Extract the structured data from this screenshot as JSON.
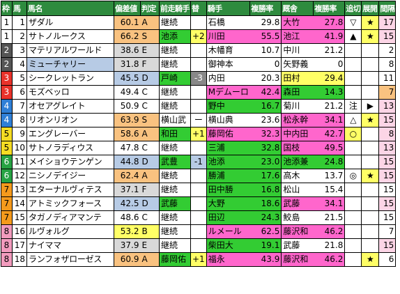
{
  "columns": [
    "枠",
    "馬",
    "馬名",
    "偏差値",
    "判定",
    "前走騎手",
    "替",
    "騎手",
    "複勝率",
    "厩舎",
    "複勝率",
    "追切",
    "展開",
    "間隔"
  ],
  "colors": {
    "header_bg": "#2e8b3e",
    "waku": [
      "#ffffff",
      "#ffffff",
      "#444444",
      "#444444",
      "#e8322a",
      "#e8322a",
      "#2f7fd6",
      "#2f7fd6",
      "#f5dc23",
      "#f5dc23",
      "#27a243",
      "#27a243",
      "#f59a1c",
      "#f59a1c",
      "#f29bbd",
      "#f29bbd",
      "#f29bbd",
      "#f29bbd"
    ],
    "orange": "#f9c280",
    "blue": "#b7cbe5",
    "green_light": "#c6e8b0",
    "green": "#33cc33",
    "pink": "#ff66cc",
    "yellow": "#ffff66",
    "gray": "#d9d9d9",
    "ltpink": "#fcd5e6"
  },
  "rows": [
    {
      "waku": "1",
      "num": "1",
      "name": "ザダル",
      "dev": "60.1",
      "grade": "A",
      "prev": "継続",
      "swap": "",
      "jockey": "石橋",
      "jrate": "29.8",
      "stable": "大竹",
      "srate": "27.8",
      "oikiri": "▽",
      "tenkai": "★",
      "kankaku": "17"
    },
    {
      "waku": "1",
      "num": "2",
      "name": "サトノルークス",
      "dev": "66.2",
      "grade": "S",
      "prev": "池添",
      "swap": "+2",
      "jockey": "川田",
      "jrate": "55.5",
      "stable": "池江",
      "srate": "41.9",
      "oikiri": "▲",
      "tenkai": "★",
      "kankaku": "15"
    },
    {
      "waku": "2",
      "num": "3",
      "name": "マテリアルワールド",
      "dev": "38.6",
      "grade": "E",
      "prev": "継続",
      "swap": "",
      "jockey": "木幡育",
      "jrate": "10.7",
      "stable": "中川",
      "srate": "21.2",
      "oikiri": "",
      "tenkai": "",
      "kankaku": "2"
    },
    {
      "waku": "2",
      "num": "4",
      "name": "ミューチャリー",
      "dev": "31.8",
      "grade": "F",
      "prev": "継続",
      "swap": "",
      "jockey": "御神本",
      "jrate": "0",
      "stable": "矢野義",
      "srate": "0",
      "oikiri": "",
      "tenkai": "",
      "kankaku": "8"
    },
    {
      "waku": "3",
      "num": "5",
      "name": "シークレットラン",
      "dev": "45.5",
      "grade": "D",
      "prev": "戸崎",
      "swap": "-3",
      "jockey": "内田",
      "jrate": "20.3",
      "stable": "田村",
      "srate": "29.4",
      "oikiri": "",
      "tenkai": "",
      "kankaku": "11"
    },
    {
      "waku": "3",
      "num": "6",
      "name": "モズベッロ",
      "dev": "49.4",
      "grade": "C",
      "prev": "継続",
      "swap": "",
      "jockey": "Mデムーロ",
      "jrate": "42.4",
      "stable": "森田",
      "srate": "14.3",
      "oikiri": "",
      "tenkai": "",
      "kankaku": "7"
    },
    {
      "waku": "4",
      "num": "7",
      "name": "オセアグレイト",
      "dev": "50.9",
      "grade": "C",
      "prev": "継続",
      "swap": "",
      "jockey": "野中",
      "jrate": "16.7",
      "stable": "菊川",
      "srate": "21.2",
      "oikiri": "注",
      "tenkai": "▶",
      "kankaku": "13"
    },
    {
      "waku": "4",
      "num": "8",
      "name": "リオンリオン",
      "dev": "63.9",
      "grade": "S",
      "prev": "横山武",
      "swap": "ー",
      "jockey": "横山典",
      "jrate": "23.6",
      "stable": "松永幹",
      "srate": "34.1",
      "oikiri": "△",
      "tenkai": "★",
      "kankaku": "15"
    },
    {
      "waku": "5",
      "num": "9",
      "name": "エングレーバー",
      "dev": "58.6",
      "grade": "A",
      "prev": "和田",
      "swap": "+1",
      "jockey": "藤岡佑",
      "jrate": "32.3",
      "stable": "中内田",
      "srate": "42.7",
      "oikiri": "○",
      "tenkai": "",
      "kankaku": "8"
    },
    {
      "waku": "5",
      "num": "10",
      "name": "サトノラディウス",
      "dev": "47.8",
      "grade": "C",
      "prev": "継続",
      "swap": "",
      "jockey": "三浦",
      "jrate": "32.8",
      "stable": "国枝",
      "srate": "49.5",
      "oikiri": "",
      "tenkai": "",
      "kankaku": "13"
    },
    {
      "waku": "6",
      "num": "11",
      "name": "メイショウテンゲン",
      "dev": "44.8",
      "grade": "D",
      "prev": "武豊",
      "swap": "-1",
      "jockey": "池添",
      "jrate": "23.0",
      "stable": "池添兼",
      "srate": "24.8",
      "oikiri": "",
      "tenkai": "",
      "kankaku": "15"
    },
    {
      "waku": "6",
      "num": "12",
      "name": "ニシノデイジー",
      "dev": "62.4",
      "grade": "A",
      "prev": "継続",
      "swap": "",
      "jockey": "勝浦",
      "jrate": "17.6",
      "stable": "高木",
      "srate": "13.7",
      "oikiri": "◎",
      "tenkai": "★",
      "kankaku": "15"
    },
    {
      "waku": "7",
      "num": "13",
      "name": "エターナルヴィテス",
      "dev": "37.1",
      "grade": "F",
      "prev": "継続",
      "swap": "",
      "jockey": "田中勝",
      "jrate": "16.8",
      "stable": "松山",
      "srate": "15.4",
      "oikiri": "",
      "tenkai": "",
      "kankaku": "15"
    },
    {
      "waku": "7",
      "num": "14",
      "name": "アトミックフォース",
      "dev": "42.5",
      "grade": "D",
      "prev": "武藤",
      "swap": "",
      "jockey": "大野",
      "jrate": "18.6",
      "stable": "武藤",
      "srate": "34.1",
      "oikiri": "",
      "tenkai": "",
      "kankaku": "15"
    },
    {
      "waku": "7",
      "num": "15",
      "name": "タガノディアマンテ",
      "dev": "48.6",
      "grade": "C",
      "prev": "継続",
      "swap": "",
      "jockey": "田辺",
      "jrate": "24.3",
      "stable": "鮫島",
      "srate": "21.5",
      "oikiri": "",
      "tenkai": "",
      "kankaku": "15"
    },
    {
      "waku": "8",
      "num": "16",
      "name": "ルヴォルグ",
      "dev": "53.2",
      "grade": "B",
      "prev": "継続",
      "swap": "",
      "jockey": "ルメール",
      "jrate": "62.5",
      "stable": "藤沢和",
      "srate": "46.2",
      "oikiri": "",
      "tenkai": "",
      "kankaku": "7"
    },
    {
      "waku": "8",
      "num": "17",
      "name": "ナイママ",
      "dev": "37.9",
      "grade": "E",
      "prev": "継続",
      "swap": "",
      "jockey": "柴田大",
      "jrate": "19.1",
      "stable": "武藤",
      "srate": "21.8",
      "oikiri": "",
      "tenkai": "",
      "kankaku": "15"
    },
    {
      "waku": "8",
      "num": "18",
      "name": "ランフォザローゼス",
      "dev": "60.9",
      "grade": "A",
      "prev": "藤岡佑",
      "swap": "+1",
      "jockey": "福永",
      "jrate": "43.9",
      "stable": "藤沢和",
      "srate": "46.2",
      "oikiri": "",
      "tenkai": "★",
      "kankaku": "6"
    }
  ]
}
